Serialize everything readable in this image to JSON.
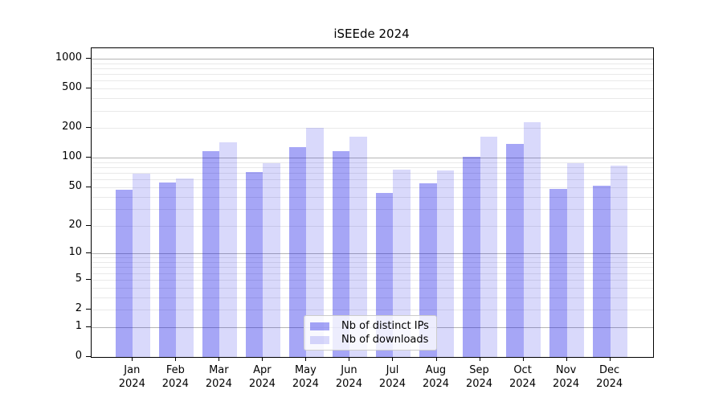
{
  "title": "iSEEde 2024",
  "chart_data": {
    "type": "bar",
    "title": "iSEEde 2024",
    "categories": [
      "Jan 2024",
      "Feb 2024",
      "Mar 2024",
      "Apr 2024",
      "May 2024",
      "Jun 2024",
      "Jul 2024",
      "Aug 2024",
      "Sep 2024",
      "Oct 2024",
      "Nov 2024",
      "Dec 2024"
    ],
    "series": [
      {
        "name": "Nb of distinct IPs",
        "color": "rgba(0,0,230,0.35)",
        "values": [
          47,
          56,
          117,
          72,
          128,
          116,
          44,
          55,
          102,
          137,
          48,
          52
        ]
      },
      {
        "name": "Nb of downloads",
        "color": "rgba(0,0,230,0.15)",
        "values": [
          69,
          62,
          143,
          88,
          202,
          164,
          76,
          75,
          165,
          230,
          88,
          84
        ]
      }
    ],
    "xlabel": "",
    "ylabel": "",
    "y_ticks": [
      0,
      1,
      2,
      5,
      10,
      20,
      50,
      100,
      200,
      500,
      1000
    ],
    "y_scale": "log10(value+1)",
    "ylim": [
      0,
      1275
    ],
    "grid": "horizontal major and minor",
    "legend_position": "lower center"
  },
  "legend": {
    "items": [
      "Nb of distinct IPs",
      "Nb of downloads"
    ]
  },
  "colors": {
    "bar_distinct_ips": "rgba(0,0,230,0.35)",
    "bar_downloads": "rgba(0,0,230,0.15)",
    "grid_major": "#b5b5b5",
    "grid_minor": "#e9e9e9",
    "axis_frame": "#000000",
    "text": "#000000",
    "legend_border": "#cccccc",
    "legend_background": "rgba(255,255,255,0.8)"
  }
}
